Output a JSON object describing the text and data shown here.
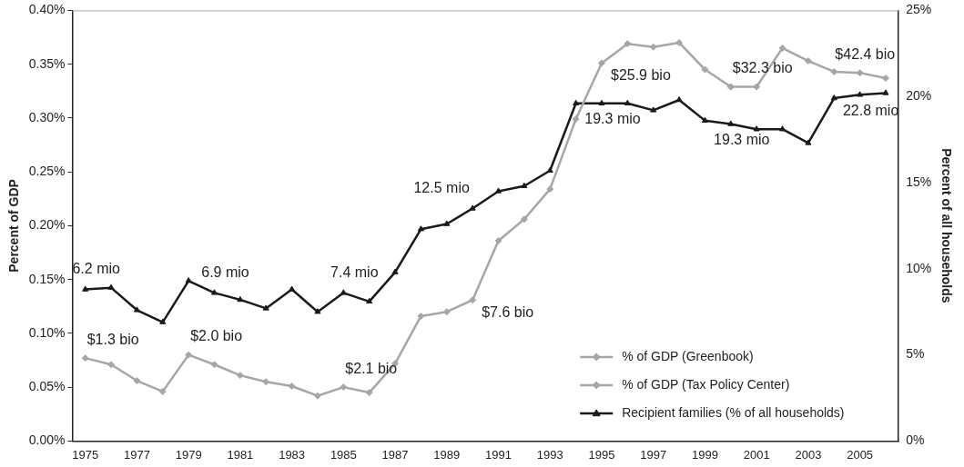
{
  "chart_data": {
    "type": "line",
    "xlabel": null,
    "ylabel": "Percent of GDP",
    "y2label": "Percent of all households",
    "x": [
      1975,
      1976,
      1977,
      1978,
      1979,
      1980,
      1981,
      1982,
      1983,
      1984,
      1985,
      1986,
      1987,
      1988,
      1989,
      1990,
      1991,
      1992,
      1993,
      1994,
      1995,
      1996,
      1997,
      1998,
      1999,
      2000,
      2001,
      2002,
      2003,
      2004,
      2005,
      2006
    ],
    "xlim": [
      1974.5,
      2006.5
    ],
    "xticks": [
      1975,
      1977,
      1979,
      1981,
      1983,
      1985,
      1987,
      1989,
      1991,
      1993,
      1995,
      1997,
      1999,
      2001,
      2003,
      2005
    ],
    "ylim": [
      0,
      0.4
    ],
    "yticks": [
      {
        "value": 0,
        "label": "0.00%"
      },
      {
        "value": 0.05,
        "label": "0.05%"
      },
      {
        "value": 0.1,
        "label": "0.10%"
      },
      {
        "value": 0.15,
        "label": "0.15%"
      },
      {
        "value": 0.2,
        "label": "0.20%"
      },
      {
        "value": 0.25,
        "label": "0.25%"
      },
      {
        "value": 0.3,
        "label": "0.30%"
      },
      {
        "value": 0.35,
        "label": "0.35%"
      },
      {
        "value": 0.4,
        "label": "0.40%"
      }
    ],
    "y2lim": [
      0,
      25
    ],
    "y2ticks": [
      {
        "value": 0,
        "label": "0%"
      },
      {
        "value": 5,
        "label": "5%"
      },
      {
        "value": 10,
        "label": "10%"
      },
      {
        "value": 15,
        "label": "15%"
      },
      {
        "value": 20,
        "label": "20%"
      },
      {
        "value": 25,
        "label": "25%"
      }
    ],
    "grid": false,
    "legend": "bottom right",
    "series": [
      {
        "name": "% of GDP (Greenbook)",
        "color": "#a6a6a6",
        "marker": "diamond",
        "values": [
          0.077,
          0.071,
          0.056,
          0.046,
          0.08,
          0.071,
          0.061,
          0.055,
          0.051,
          0.042,
          0.05,
          0.045,
          0.072,
          0.116,
          0.12,
          0.131,
          0.186,
          0.206,
          0.234,
          0.299,
          0.351,
          0.369,
          0.366,
          0.37,
          0.345,
          0.329,
          null,
          null,
          null,
          null,
          null,
          null
        ]
      },
      {
        "name": "% of GDP (Tax Policy Center)",
        "color": "#a6a6a6",
        "marker": "diamond",
        "values": [
          null,
          null,
          null,
          null,
          null,
          null,
          null,
          null,
          null,
          null,
          null,
          null,
          null,
          null,
          null,
          null,
          null,
          null,
          null,
          null,
          null,
          null,
          null,
          null,
          null,
          0.329,
          0.329,
          0.365,
          0.353,
          0.343,
          0.342,
          0.337
        ]
      },
      {
        "name": "Recipient families (% of all households)",
        "color": "#1a1a1a",
        "marker": "triangle",
        "axis": "y2",
        "values": [
          8.8,
          8.9,
          7.6,
          6.9,
          9.3,
          8.6,
          8.2,
          7.7,
          8.8,
          7.5,
          8.6,
          8.1,
          9.8,
          12.3,
          12.6,
          13.5,
          14.5,
          14.8,
          15.7,
          19.6,
          19.6,
          19.6,
          19.2,
          19.8,
          18.6,
          18.4,
          18.1,
          18.1,
          17.3,
          19.9,
          20.1,
          20.2
        ]
      }
    ],
    "annotations": [
      {
        "text": "$1.3 bio",
        "x": 1975,
        "y": 0.077
      },
      {
        "text": "$2.0 bio",
        "x": 1979,
        "y": 0.08
      },
      {
        "text": "$2.1 bio",
        "x": 1985,
        "y": 0.05
      },
      {
        "text": "$7.6 bio",
        "x": 1990,
        "y": 0.131
      },
      {
        "text": "$25.9 bio",
        "x": 1995,
        "y": 0.351
      },
      {
        "text": "$32.3 bio",
        "x": 2000,
        "y": 0.329
      },
      {
        "text": "$42.4 bio",
        "x": 2005,
        "y": 0.342
      },
      {
        "text": "6.2 mio",
        "x": 1975,
        "y": 0.1408
      },
      {
        "text": "6.9 mio",
        "x": 1980,
        "y": 0.1376
      },
      {
        "text": "7.4 mio",
        "x": 1985,
        "y": 0.1376
      },
      {
        "text": "12.5 mio",
        "x": 1990,
        "y": 0.216
      },
      {
        "text": "19.3 mio",
        "x": 1995,
        "y": 0.3136
      },
      {
        "text": "19.3 mio",
        "x": 2000,
        "y": 0.2944
      },
      {
        "text": "22.8 mio",
        "x": 2005,
        "y": 0.3216
      }
    ]
  }
}
